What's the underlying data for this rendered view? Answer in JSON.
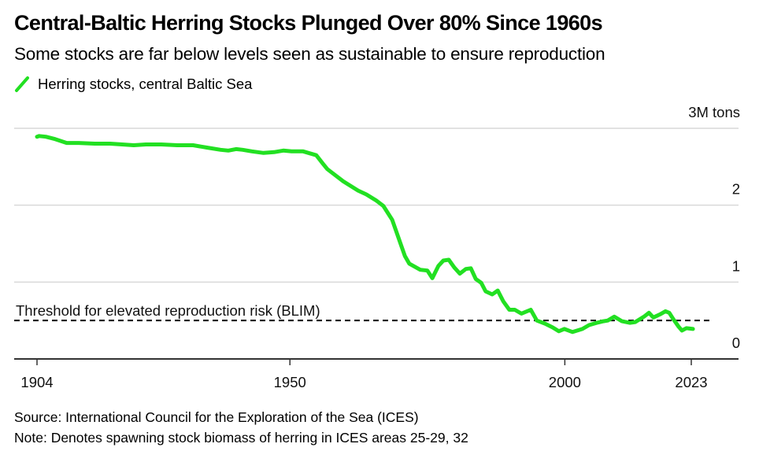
{
  "header": {
    "title": "Central-Baltic Herring Stocks Plunged Over 80% Since 1960s",
    "subtitle": "Some stocks are far below levels seen as sustainable to ensure reproduction"
  },
  "footer": {
    "source": "Source: International Council for the Exploration of the Sea (ICES)",
    "note": "Note: Denotes spawning stock biomass of herring in ICES areas 25-29, 32"
  },
  "colors": {
    "series": "#22e022",
    "grid": "#d9d9d9",
    "axis": "#333333",
    "threshold": "#000000"
  },
  "chart_data": {
    "type": "line",
    "title": "Central-Baltic Herring Stocks Plunged Over 80% Since 1960s",
    "subtitle": "Some stocks are far below levels seen as sustainable to ensure reproduction",
    "xlabel": "",
    "ylabel": "3M tons",
    "xlim": [
      1904,
      2023
    ],
    "ylim": [
      0,
      3
    ],
    "grid": true,
    "legend_position": "top-left",
    "x_ticks": [
      {
        "value": 1904,
        "label": "1904"
      },
      {
        "value": 1950,
        "label": "1950"
      },
      {
        "value": 2000,
        "label": "2000"
      },
      {
        "value": 2023,
        "label": "2023"
      }
    ],
    "y_ticks": [
      {
        "value": 0,
        "label": "0"
      },
      {
        "value": 1,
        "label": "1"
      },
      {
        "value": 2,
        "label": "2"
      },
      {
        "value": 3,
        "label": "3M tons"
      }
    ],
    "annotations": [
      {
        "type": "hline",
        "value": 0.5,
        "label": "Threshold for elevated reproduction risk (BLIM)",
        "style": "dashed"
      }
    ],
    "series": [
      {
        "name": "Herring stocks, central Baltic Sea",
        "unit": "million tons",
        "x": [
          1904,
          1904.4,
          1905.6,
          1907.3,
          1909.4,
          1911.6,
          1914.5,
          1917.3,
          1919.5,
          1921.6,
          1923.8,
          1926.6,
          1929.5,
          1932.4,
          1934.8,
          1937.4,
          1938.8,
          1940.2,
          1941.4,
          1943.1,
          1945.2,
          1947.1,
          1948.8,
          1950.3,
          1952.4,
          1953.8,
          1954.8,
          1956.0,
          1956.8,
          1959.7,
          1962.4,
          1963.9,
          1965.7,
          1967.0,
          1968.6,
          1970.9,
          1971.7,
          1973.7,
          1975.0,
          1975.9,
          1977.0,
          1977.9,
          1978.9,
          1979.9,
          1980.9,
          1982.0,
          1982.9,
          1983.8,
          1984.8,
          1985.6,
          1986.8,
          1987.8,
          1988.8,
          1989.9,
          1990.9,
          1992.1,
          1993.8,
          1994.9,
          1996.4,
          1997.8,
          1998.9,
          1999.9,
          2001.4,
          2003.2,
          2004.4,
          2005.8,
          2007.0,
          2007.8,
          2009.0,
          2010.4,
          2011.8,
          2012.8,
          2014.4,
          2015.3,
          2016.1,
          2017.3,
          2018.3,
          2019.0,
          2019.7,
          2020.7,
          2021.3,
          2022.1,
          2023.3
        ],
        "values": [
          2.89,
          2.9,
          2.89,
          2.86,
          2.81,
          2.81,
          2.8,
          2.8,
          2.79,
          2.78,
          2.79,
          2.79,
          2.78,
          2.78,
          2.75,
          2.72,
          2.71,
          2.73,
          2.72,
          2.7,
          2.68,
          2.69,
          2.71,
          2.7,
          2.7,
          2.67,
          2.65,
          2.54,
          2.47,
          2.31,
          2.19,
          2.14,
          2.06,
          1.99,
          1.81,
          1.34,
          1.24,
          1.16,
          1.15,
          1.05,
          1.21,
          1.28,
          1.29,
          1.19,
          1.11,
          1.17,
          1.18,
          1.04,
          0.99,
          0.88,
          0.84,
          0.89,
          0.75,
          0.64,
          0.64,
          0.59,
          0.64,
          0.5,
          0.46,
          0.41,
          0.36,
          0.39,
          0.35,
          0.39,
          0.44,
          0.47,
          0.49,
          0.5,
          0.55,
          0.49,
          0.47,
          0.48,
          0.55,
          0.6,
          0.54,
          0.58,
          0.62,
          0.6,
          0.52,
          0.42,
          0.37,
          0.4,
          0.39
        ]
      }
    ]
  }
}
